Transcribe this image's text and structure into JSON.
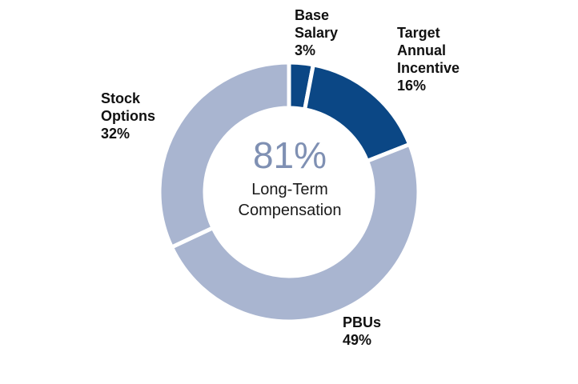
{
  "chart_data": {
    "type": "pie",
    "style": "donut",
    "center": {
      "value": "81%",
      "line1": "Long-Term",
      "line2": "Compensation"
    },
    "slices": [
      {
        "lines": [
          "Base",
          "Salary"
        ],
        "value_label": "3%",
        "value": 3,
        "color": "#0b4785"
      },
      {
        "lines": [
          "Target",
          "Annual",
          "Incentive"
        ],
        "value_label": "16%",
        "value": 16,
        "color": "#0b4785"
      },
      {
        "lines": [
          "PBUs"
        ],
        "value_label": "49%",
        "value": 49,
        "color": "#a9b5d0"
      },
      {
        "lines": [
          "Stock",
          "Options"
        ],
        "value_label": "32%",
        "value": 32,
        "color": "#a9b5d0"
      }
    ],
    "center_value_color": "#7f90b3"
  }
}
